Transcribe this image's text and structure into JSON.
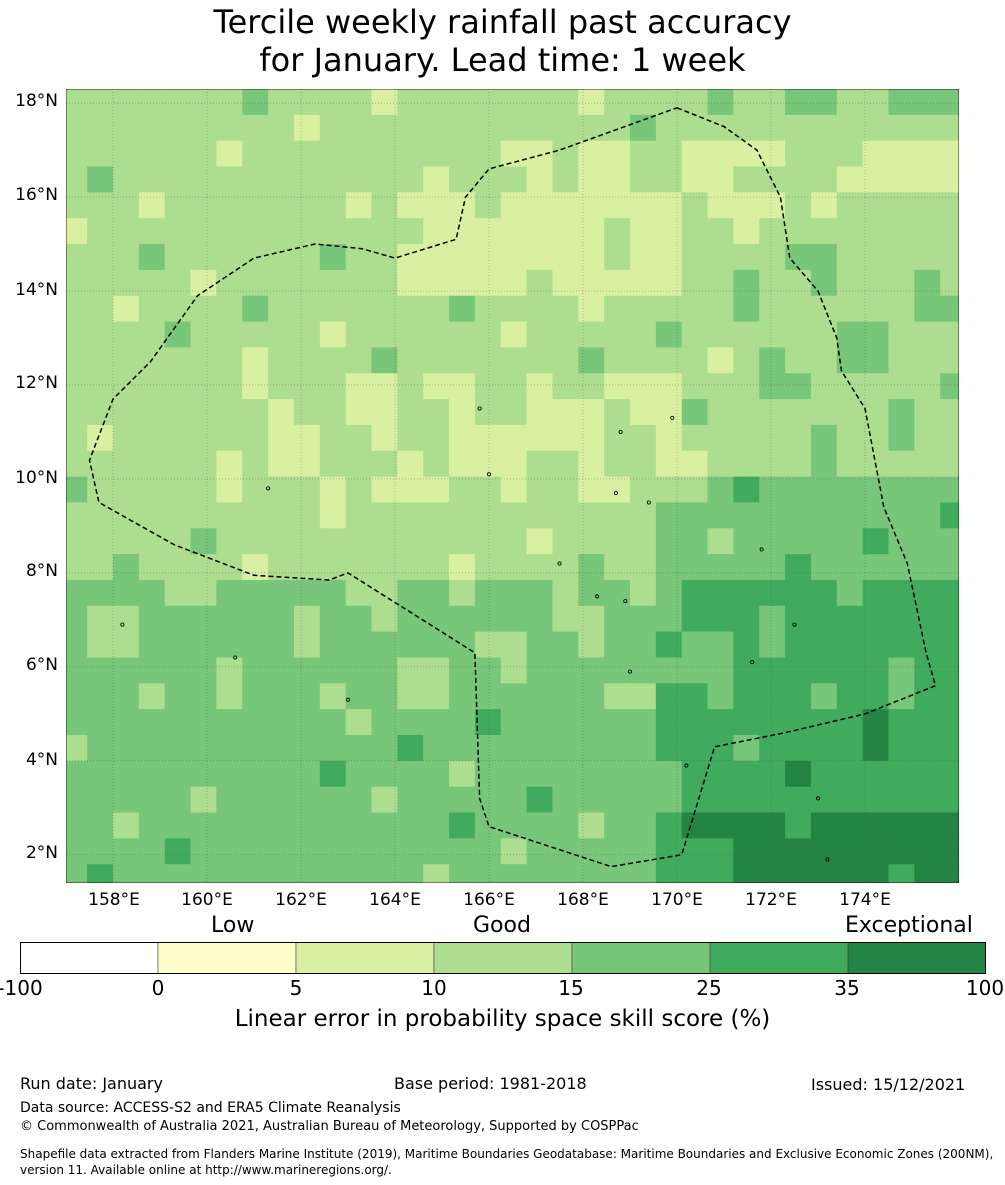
{
  "title": {
    "line1": "Tercile weekly rainfall past accuracy",
    "line2": "for January. Lead time: 1 week"
  },
  "map": {
    "lon_range": [
      157.0,
      176.0
    ],
    "lat_range": [
      1.4,
      18.3
    ],
    "cell_size_deg": 0.55,
    "lat_labels": [
      "18°N",
      "16°N",
      "14°N",
      "12°N",
      "10°N",
      "8°N",
      "6°N",
      "4°N",
      "2°N"
    ],
    "lat_values": [
      18,
      16,
      14,
      12,
      10,
      8,
      6,
      4,
      2
    ],
    "lon_labels": [
      "158°E",
      "160°E",
      "162°E",
      "164°E",
      "166°E",
      "168°E",
      "170°E",
      "172°E",
      "174°E"
    ],
    "lon_values": [
      158,
      160,
      162,
      164,
      166,
      168,
      170,
      172,
      174
    ],
    "eez_boundary": [
      [
        170.0,
        17.9
      ],
      [
        171.0,
        17.5
      ],
      [
        171.7,
        17.0
      ],
      [
        172.2,
        16.0
      ],
      [
        172.4,
        14.7
      ],
      [
        173.0,
        14.0
      ],
      [
        173.4,
        13.0
      ],
      [
        173.5,
        12.3
      ],
      [
        174.0,
        11.5
      ],
      [
        174.4,
        9.4
      ],
      [
        174.9,
        8.2
      ],
      [
        175.3,
        6.3
      ],
      [
        175.5,
        5.6
      ],
      [
        174.0,
        5.0
      ],
      [
        172.3,
        4.6
      ],
      [
        170.8,
        4.3
      ],
      [
        170.1,
        2.0
      ],
      [
        168.6,
        1.75
      ],
      [
        166.0,
        2.6
      ],
      [
        165.8,
        3.2
      ],
      [
        165.7,
        6.3
      ],
      [
        163.0,
        8.0
      ],
      [
        162.6,
        7.85
      ],
      [
        161.0,
        7.95
      ],
      [
        159.3,
        8.6
      ],
      [
        157.7,
        9.5
      ],
      [
        157.5,
        10.4
      ],
      [
        158.0,
        11.7
      ],
      [
        158.8,
        12.5
      ],
      [
        159.8,
        13.9
      ],
      [
        161.0,
        14.7
      ],
      [
        162.3,
        15.0
      ],
      [
        163.3,
        14.9
      ],
      [
        164.0,
        14.7
      ],
      [
        165.3,
        15.1
      ],
      [
        165.5,
        16.0
      ],
      [
        166.0,
        16.6
      ],
      [
        167.5,
        17.0
      ],
      [
        170.0,
        17.9
      ]
    ]
  },
  "legend": {
    "categories": [
      "Low",
      "Good",
      "Exceptional"
    ],
    "ticks": [
      "-100",
      "0",
      "5",
      "10",
      "15",
      "25",
      "35",
      "100"
    ],
    "colors": [
      "#ffffff",
      "#ffffcc",
      "#d9f0a3",
      "#addd8e",
      "#78c679",
      "#41ab5d",
      "#238443"
    ],
    "label": "Linear error in probability space skill score (%)"
  },
  "footer": {
    "run_date": "Run date: January",
    "base_period": "Base period: 1981-2018",
    "issued": "Issued: 15/12/2021",
    "data_source": "Data source: ACCESS-S2 and ERA5 Climate Reanalysis",
    "copyright": "© Commonwealth of Australia 2021, Australian Bureau of Meteorology, Supported by COSPPac",
    "shapefile_1": "Shapefile data extracted from Flanders Marine Institute (2019), Maritime Boundaries Geodatabase: Maritime Boundaries and Exclusive Economic Zones (200NM),",
    "shapefile_2": "version 11. Available online at http://www.marineregions.org/."
  }
}
